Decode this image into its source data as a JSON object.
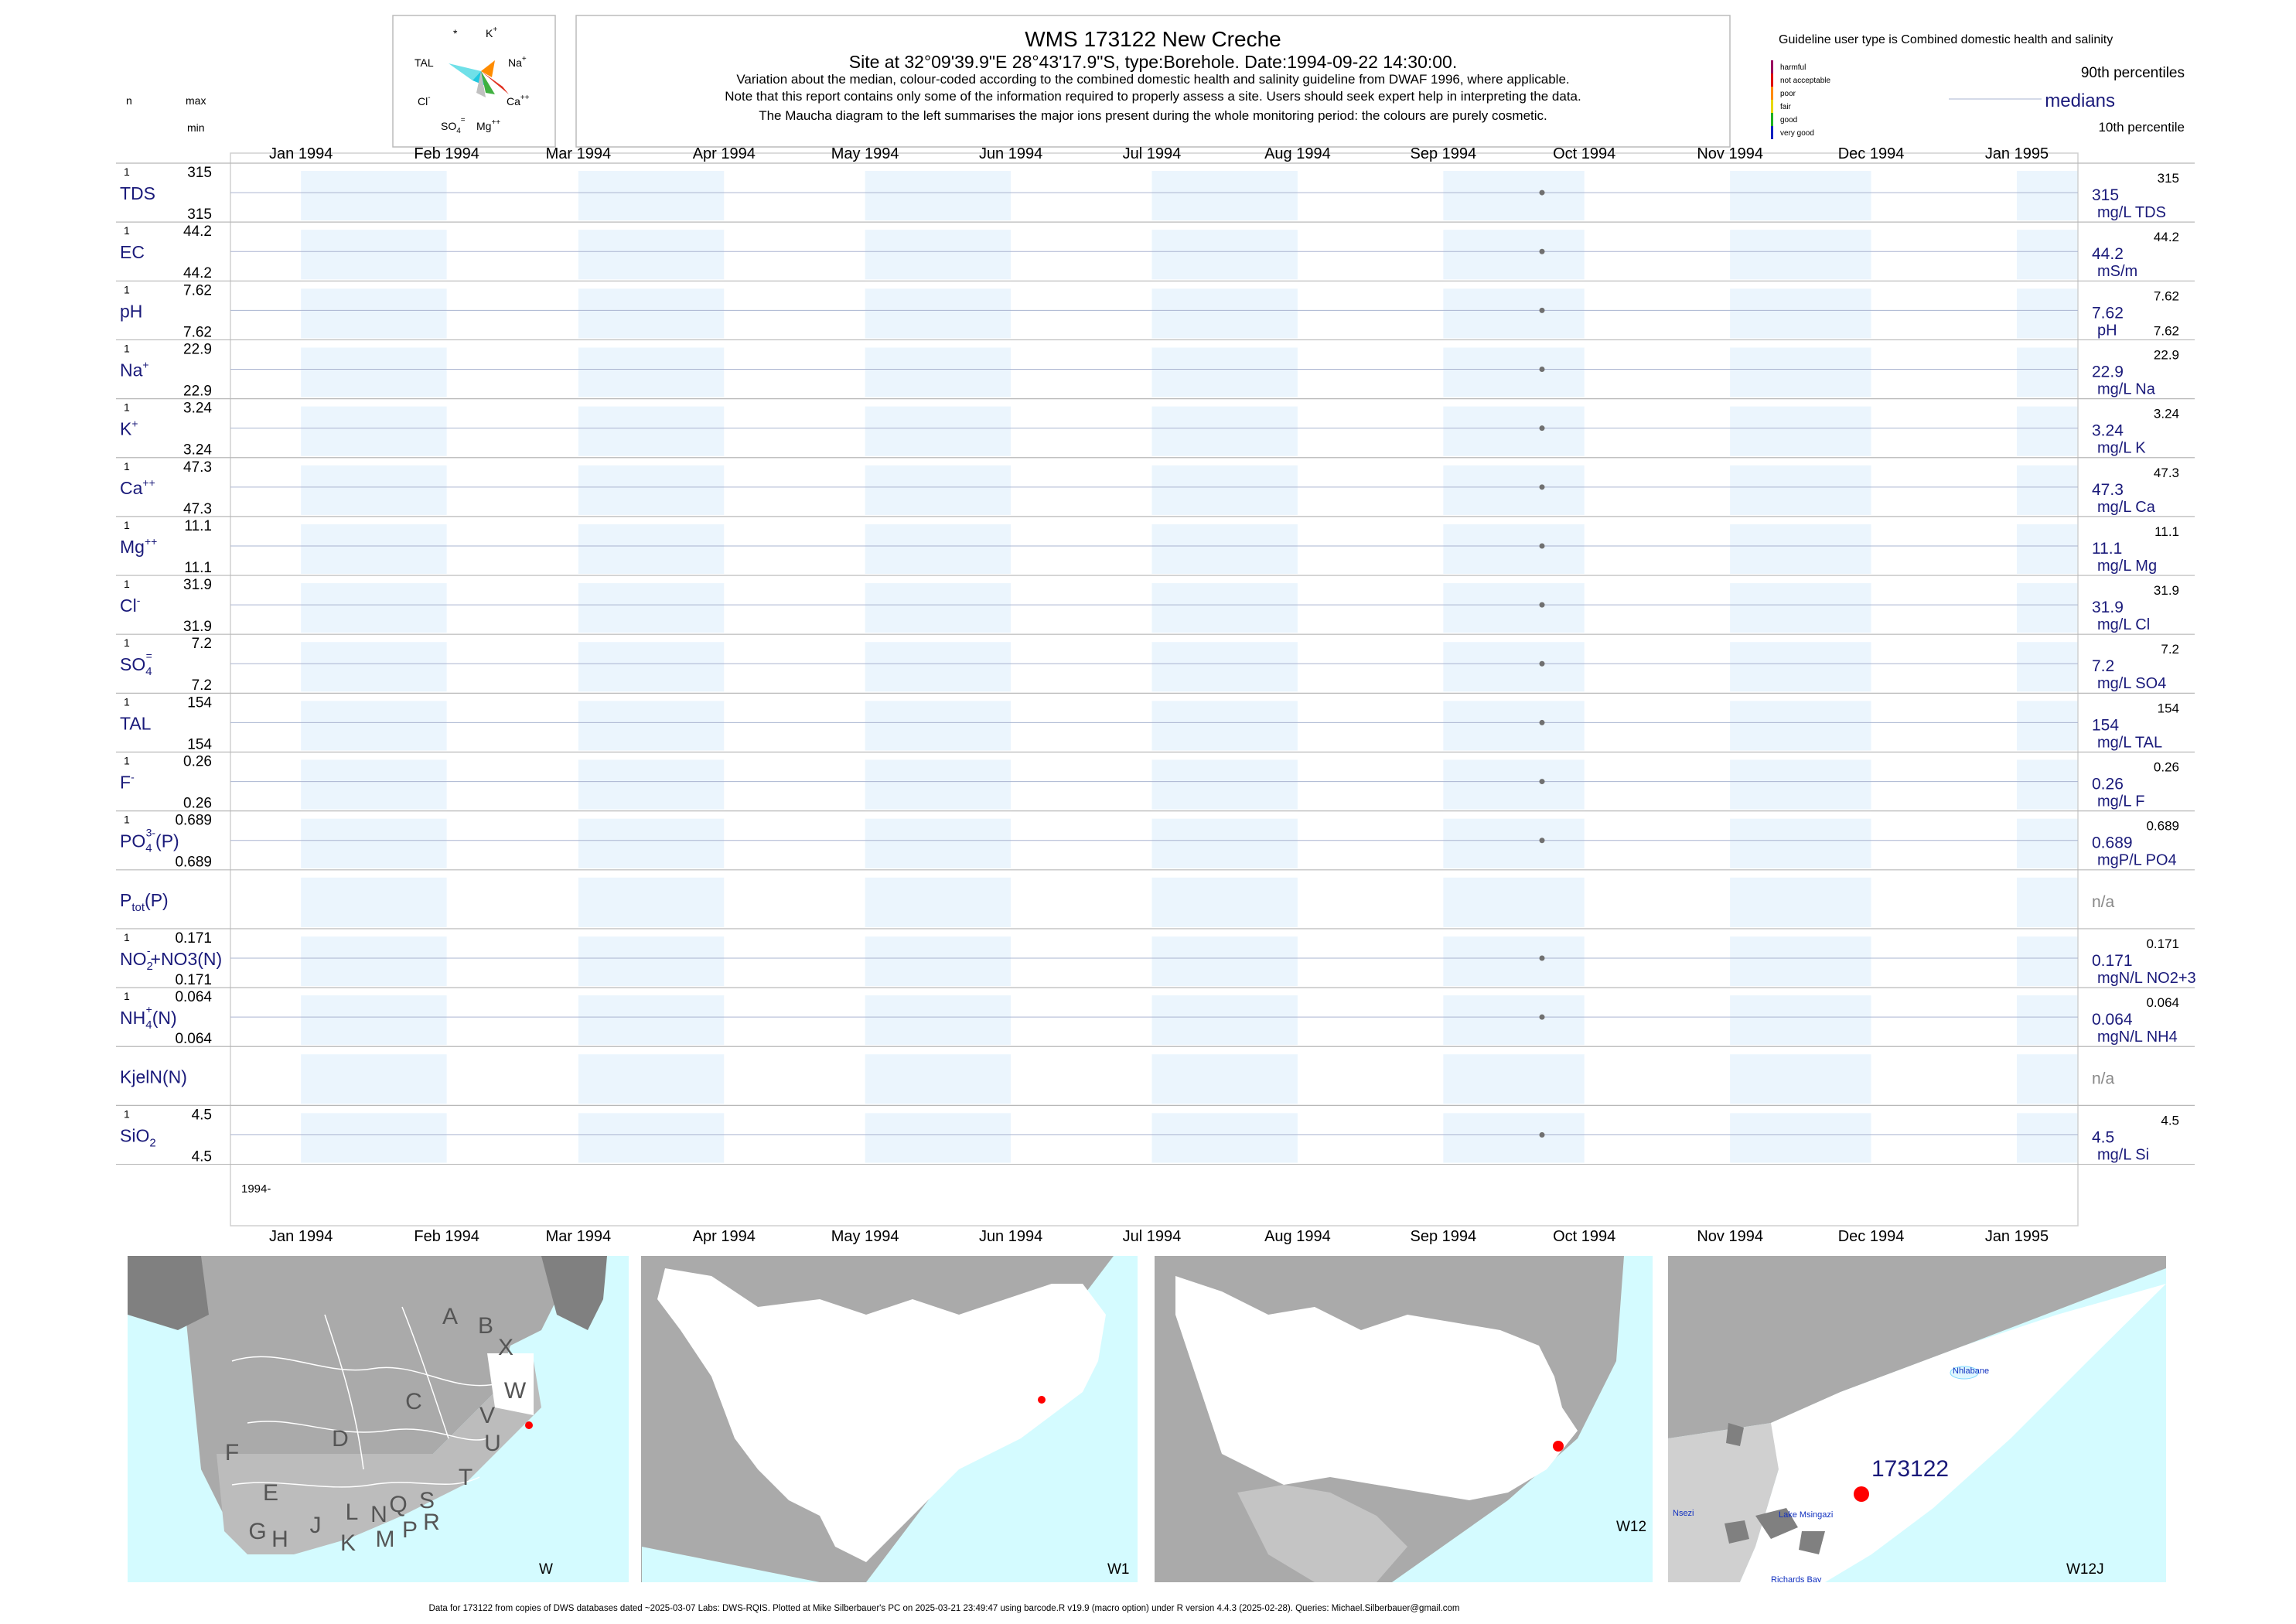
{
  "header": {
    "title": "WMS 173122  New Creche",
    "site_line": "Site at 32°09'39.9\"E 28°43'17.9\"S, type:Borehole. Date:1994-09-22 14:30:00.",
    "notes": [
      "Variation about the median,  colour-coded according to the combined domestic health and salinity guideline from DWAF 1996, where applicable.",
      "Note that this report contains only some of the information required to properly assess a site. Users should seek expert help in interpreting the data.",
      "The Maucha diagram to the left summarises the major ions present during the whole monitoring period: the colours are purely cosmetic."
    ],
    "col_n": "n",
    "col_max": "max",
    "col_min": "min"
  },
  "maucha": {
    "labels": [
      "*",
      "K+",
      "TAL",
      "Na+",
      "Cl-",
      "Ca++",
      "SO4=",
      "Mg++"
    ],
    "colors": [
      "#6fe0e8",
      "#20c8e0",
      "#ff8c00",
      "#e03020",
      "#40b040",
      "#c0c0c0"
    ]
  },
  "legend": {
    "guideline_text": "Guideline user type is Combined domestic health and salinity",
    "classes": [
      {
        "label": "harmful",
        "color": "#9b0060"
      },
      {
        "label": "not acceptable",
        "color": "#e00000"
      },
      {
        "label": "poor",
        "color": "#ff8c00"
      },
      {
        "label": "fair",
        "color": "#e8d800"
      },
      {
        "label": "good",
        "color": "#20b020"
      },
      {
        "label": "very good",
        "color": "#1020c0"
      }
    ],
    "p90": "90th percentiles",
    "medians": "medians",
    "p10": "10th percentile"
  },
  "chart_data": {
    "type": "scatter",
    "x_ticks": [
      "Jan 1994",
      "Feb 1994",
      "Mar 1994",
      "Apr 1994",
      "May 1994",
      "Jun 1994",
      "Jul 1994",
      "Aug 1994",
      "Sep 1994",
      "Oct 1994",
      "Nov 1994",
      "Dec 1994",
      "Jan 1995"
    ],
    "x_range": [
      "1993-12-17",
      "1995-01-14"
    ],
    "year_label": "1994-",
    "sample_date": "1994-09-22",
    "rows": [
      {
        "name": "TDS",
        "n": "1",
        "max": "315",
        "min": "315",
        "median": "315",
        "unit": "mg/L TDS",
        "p90": "315",
        "p10": "",
        "value": 315
      },
      {
        "name": "EC",
        "n": "1",
        "max": "44.2",
        "min": "44.2",
        "median": "44.2",
        "unit": "mS/m",
        "p90": "44.2",
        "p10": "",
        "value": 44.2
      },
      {
        "name": "pH",
        "n": "1",
        "max": "7.62",
        "min": "7.62",
        "median": "7.62",
        "unit": "pH",
        "p90": "7.62",
        "p10": "7.62",
        "value": 7.62
      },
      {
        "name": "Na",
        "sup": "+",
        "n": "1",
        "max": "22.9",
        "min": "22.9",
        "median": "22.9",
        "unit": "mg/L Na",
        "p90": "22.9",
        "p10": "",
        "value": 22.9
      },
      {
        "name": "K",
        "sup": "+",
        "n": "1",
        "max": "3.24",
        "min": "3.24",
        "median": "3.24",
        "unit": "mg/L K",
        "p90": "3.24",
        "p10": "",
        "value": 3.24
      },
      {
        "name": "Ca",
        "sup": "++",
        "n": "1",
        "max": "47.3",
        "min": "47.3",
        "median": "47.3",
        "unit": "mg/L Ca",
        "p90": "47.3",
        "p10": "",
        "value": 47.3
      },
      {
        "name": "Mg",
        "sup": "++",
        "n": "1",
        "max": "11.1",
        "min": "11.1",
        "median": "11.1",
        "unit": "mg/L Mg",
        "p90": "11.1",
        "p10": "",
        "value": 11.1
      },
      {
        "name": "Cl",
        "sup": "-",
        "n": "1",
        "max": "31.9",
        "min": "31.9",
        "median": "31.9",
        "unit": "mg/L Cl",
        "p90": "31.9",
        "p10": "",
        "value": 31.9
      },
      {
        "name": "SO",
        "sub": "4",
        "sup": "=",
        "n": "1",
        "max": "7.2",
        "min": "7.2",
        "median": "7.2",
        "unit": "mg/L SO4",
        "p90": "7.2",
        "p10": "",
        "value": 7.2
      },
      {
        "name": "TAL",
        "n": "1",
        "max": "154",
        "min": "154",
        "median": "154",
        "unit": "mg/L TAL",
        "p90": "154",
        "p10": "",
        "value": 154
      },
      {
        "name": "F",
        "sup": "-",
        "n": "1",
        "max": "0.26",
        "min": "0.26",
        "median": "0.26",
        "unit": "mg/L F",
        "p90": "0.26",
        "p10": "",
        "value": 0.26
      },
      {
        "name": "PO",
        "sub": "4",
        "sup": "3-",
        "tail": "(P)",
        "n": "1",
        "max": "0.689",
        "min": "0.689",
        "median": "0.689",
        "unit": "mgP/L PO4",
        "p90": "0.689",
        "p10": "",
        "value": 0.689
      },
      {
        "name": "P",
        "sub": "tot",
        "tail": "(P)",
        "n": "",
        "max": "",
        "min": "",
        "median": "n/a",
        "unit": "",
        "p90": "",
        "p10": "",
        "value": null
      },
      {
        "name": "NO",
        "sub": "2",
        "sup": "-",
        "tail": "+NO3(N)",
        "n": "1",
        "max": "0.171",
        "min": "0.171",
        "median": "0.171",
        "unit": "mgN/L NO2+3",
        "p90": "0.171",
        "p10": "",
        "value": 0.171
      },
      {
        "name": "NH",
        "sub": "4",
        "sup": "+",
        "tail": "(N)",
        "n": "1",
        "max": "0.064",
        "min": "0.064",
        "median": "0.064",
        "unit": "mgN/L NH4",
        "p90": "0.064",
        "p10": "",
        "value": 0.064
      },
      {
        "name": "KjelN(N)",
        "n": "",
        "max": "",
        "min": "",
        "median": "n/a",
        "unit": "",
        "p90": "",
        "p10": "",
        "value": null
      },
      {
        "name": "SiO",
        "sub": "2",
        "n": "1",
        "max": "4.5",
        "min": "4.5",
        "median": "4.5",
        "unit": "mg/L Si",
        "p90": "4.5",
        "p10": "",
        "value": 4.5
      }
    ]
  },
  "maps": {
    "panel_labels": [
      "W",
      "W1",
      "W12",
      "W12J"
    ],
    "region_letters": [
      "A",
      "B",
      "X",
      "W",
      "C",
      "V",
      "D",
      "U",
      "F",
      "T",
      "E",
      "L",
      "N",
      "Q",
      "S",
      "G",
      "H",
      "J",
      "K",
      "M",
      "P",
      "R"
    ],
    "site_id": "173122",
    "place_names": [
      "Nhlabane",
      "Nsezi",
      "Lake Msingazi",
      "Richards Bay"
    ]
  },
  "footer": "Data for 173122 from copies of DWS databases dated ~2025-03-07 Labs: DWS-RQIS. Plotted at Mike Silberbauer's PC on 2025-03-21 23:49:47 using barcode.R v19.9 (macro option) under R version 4.4.3 (2025-02-28). Queries: Michael.Silberbauer@gmail.com"
}
